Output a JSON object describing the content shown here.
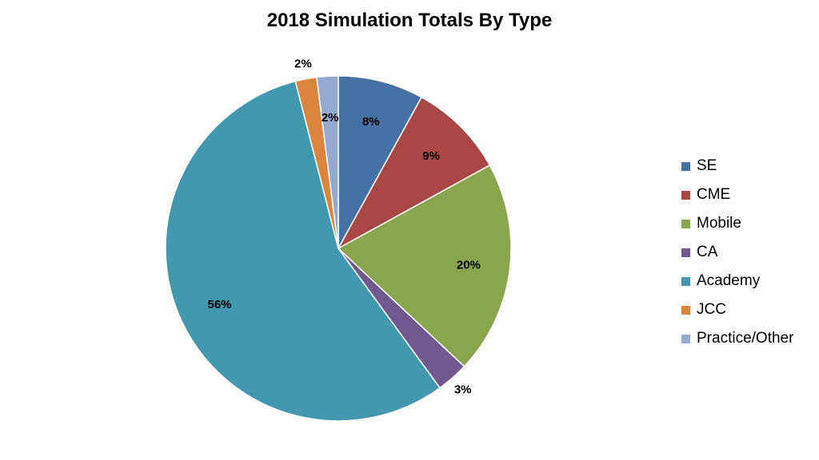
{
  "chart_data": {
    "type": "pie",
    "title": "2018 Simulation Totals By Type",
    "slices": [
      {
        "label": "SE",
        "value": 8,
        "display": "8%",
        "color": "#4671A5"
      },
      {
        "label": "CME",
        "value": 9,
        "display": "9%",
        "color": "#A94744"
      },
      {
        "label": "Mobile",
        "value": 20,
        "display": "20%",
        "color": "#89A54E"
      },
      {
        "label": "CA",
        "value": 3,
        "display": "3%",
        "color": "#71588F"
      },
      {
        "label": "Academy",
        "value": 56,
        "display": "56%",
        "color": "#4198AF"
      },
      {
        "label": "JCC",
        "value": 2,
        "display": "2%",
        "color": "#DB843D"
      },
      {
        "label": "Practice/Other",
        "value": 2,
        "display": "2%",
        "color": "#93A9CF"
      }
    ],
    "start_angle": "12 o'clock",
    "direction": "clockwise",
    "legend_position": "right"
  }
}
